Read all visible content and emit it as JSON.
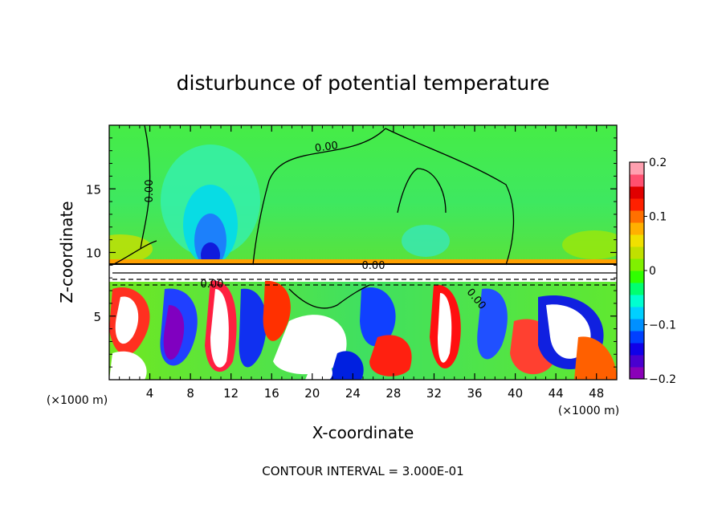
{
  "chart_data": {
    "type": "heatmap",
    "title": "disturbunce of potential temperature",
    "xlabel": "X-coordinate",
    "ylabel": "Z-coordinate",
    "x_unit": "(×1000 m)",
    "y_unit": "(×1000 m)",
    "xlim": [
      0,
      50
    ],
    "ylim": [
      0,
      20
    ],
    "x_ticks": [
      4,
      8,
      12,
      16,
      20,
      24,
      28,
      32,
      36,
      40,
      44,
      48
    ],
    "y_ticks": [
      5,
      10,
      15
    ],
    "colorbar": {
      "min": -0.2,
      "max": 0.2,
      "tick_values": [
        0.2,
        0.1,
        0,
        -0.1,
        -0.2
      ],
      "tick_labels": [
        "0.2",
        "0.1",
        "0",
        "−0.1",
        "−0.2"
      ],
      "colors": [
        "#8a00b8",
        "#4a00d0",
        "#1000e8",
        "#0040ff",
        "#0090ff",
        "#00d0ff",
        "#00ffd0",
        "#00ff70",
        "#30ff00",
        "#80f000",
        "#c0e000",
        "#f0e000",
        "#ffb000",
        "#ff7000",
        "#ff2000",
        "#e00000",
        "#ff5070",
        "#ffa0b0"
      ]
    },
    "contour_labels": [
      "0.00",
      "0.00",
      "0.00",
      "0.00",
      "0.00"
    ],
    "contour_label_positions": [
      [
        20,
        19.1
      ],
      [
        4.5,
        15
      ],
      [
        26,
        9.1
      ],
      [
        9.5,
        7.6
      ],
      [
        30,
        6.6
      ]
    ],
    "interface_height": 9.0,
    "note": "CONTOUR INTERVAL = 3.000E-01"
  }
}
